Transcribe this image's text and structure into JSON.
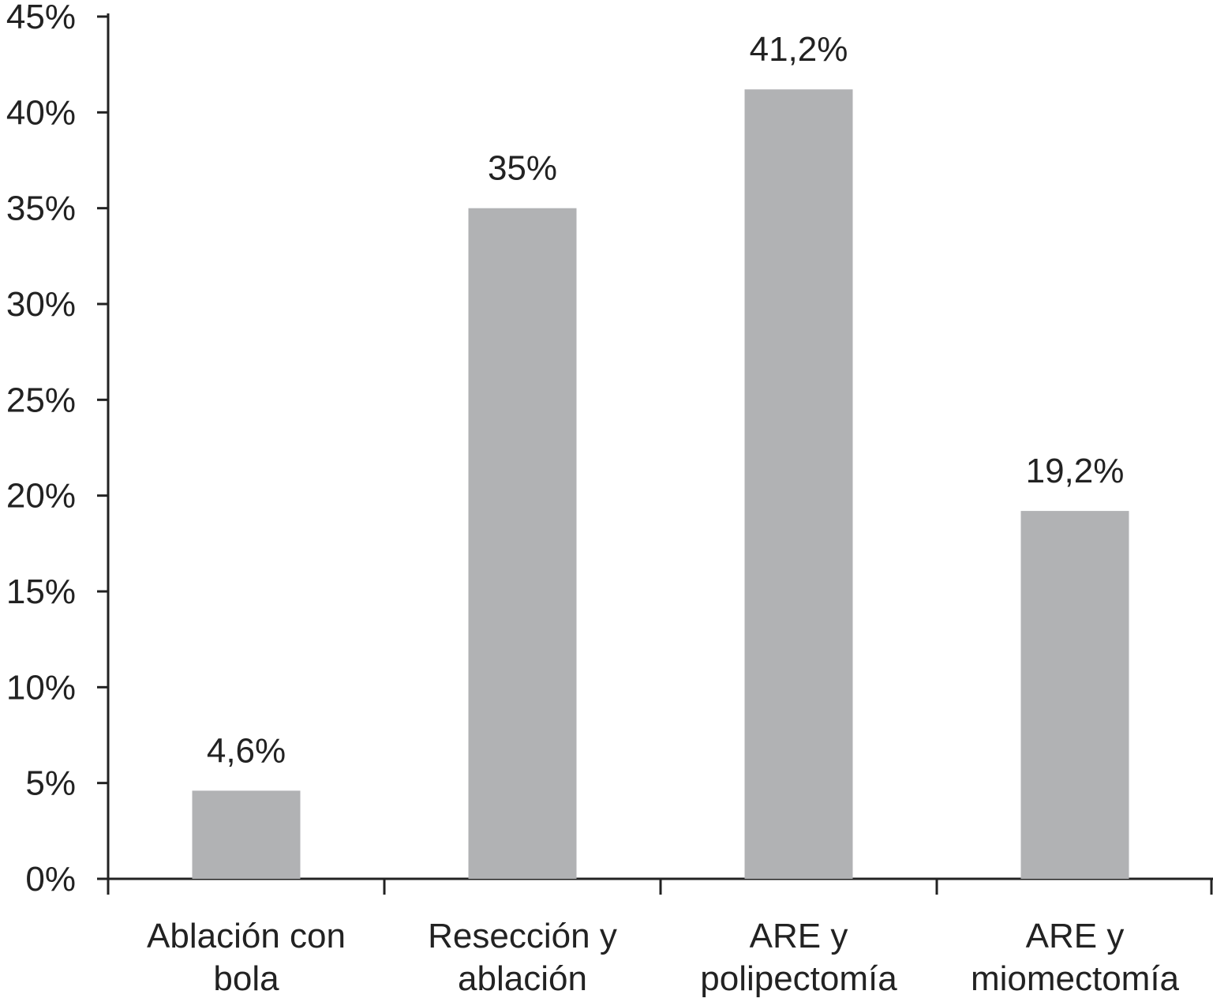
{
  "chart_data": {
    "type": "bar",
    "categories": [
      [
        "Ablación con",
        "bola"
      ],
      [
        "Resección y",
        "ablación"
      ],
      [
        "ARE y",
        "polipectomía"
      ],
      [
        "ARE y",
        "miomectomía"
      ]
    ],
    "values": [
      4.6,
      35,
      41.2,
      19.2
    ],
    "data_labels": [
      "4,6%",
      "35%",
      "41,2%",
      "19,2%"
    ],
    "yticks": [
      0,
      5,
      10,
      15,
      20,
      25,
      30,
      35,
      40,
      45
    ],
    "ytick_labels": [
      "0%",
      "5%",
      "10%",
      "15%",
      "20%",
      "25%",
      "30%",
      "35%",
      "40%",
      "45%"
    ],
    "ylim": [
      0,
      45
    ],
    "title": "",
    "xlabel": "",
    "ylabel": "",
    "grid": false,
    "bar_color": "#b1b2b4",
    "axis_color": "#222222"
  }
}
